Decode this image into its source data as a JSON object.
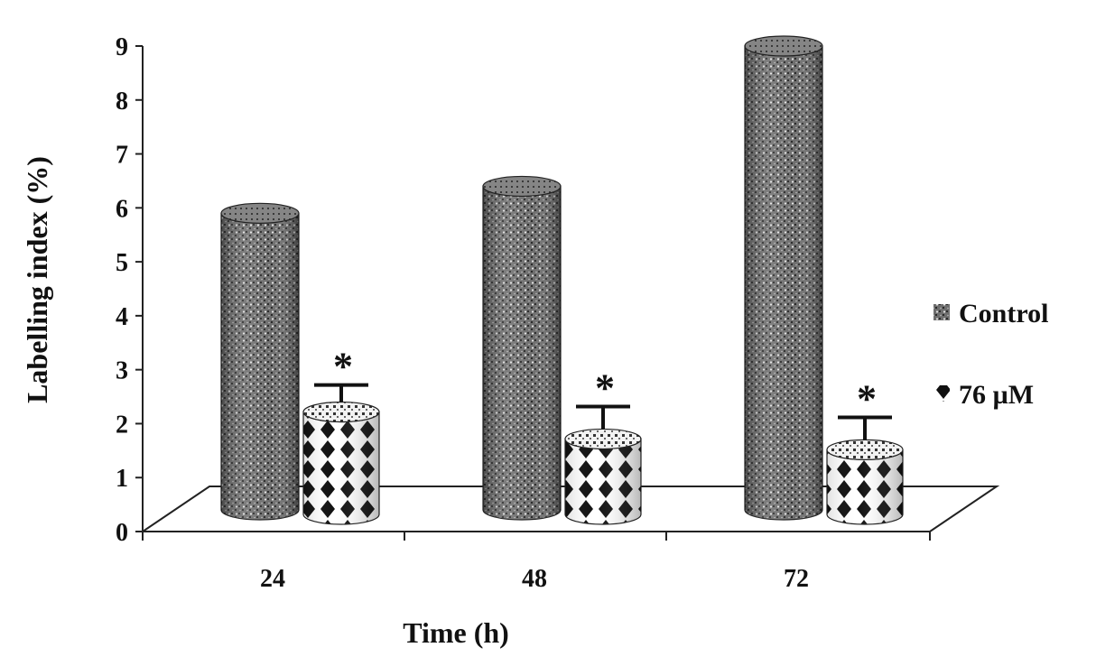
{
  "chart_data": {
    "type": "bar",
    "style": "3d-cylinder",
    "title": "",
    "xlabel": "Time (h)",
    "ylabel": "Labelling index (%)",
    "categories": [
      "24",
      "48",
      "72"
    ],
    "ylim": [
      0,
      9
    ],
    "yticks": [
      "0",
      "1",
      "2",
      "3",
      "4",
      "5",
      "6",
      "7",
      "8",
      "9"
    ],
    "series": [
      {
        "name": "Control",
        "values": [
          5.9,
          6.4,
          9.0
        ],
        "errors": [
          0,
          0,
          0
        ],
        "pattern": "dotted-dark",
        "marker": ""
      },
      {
        "name": "76 µM",
        "values": [
          2.4,
          1.9,
          1.7
        ],
        "errors": [
          0.5,
          0.6,
          0.6
        ],
        "pattern": "diamond-check",
        "marker": "*"
      }
    ],
    "legend_position": "right",
    "grid": false
  }
}
